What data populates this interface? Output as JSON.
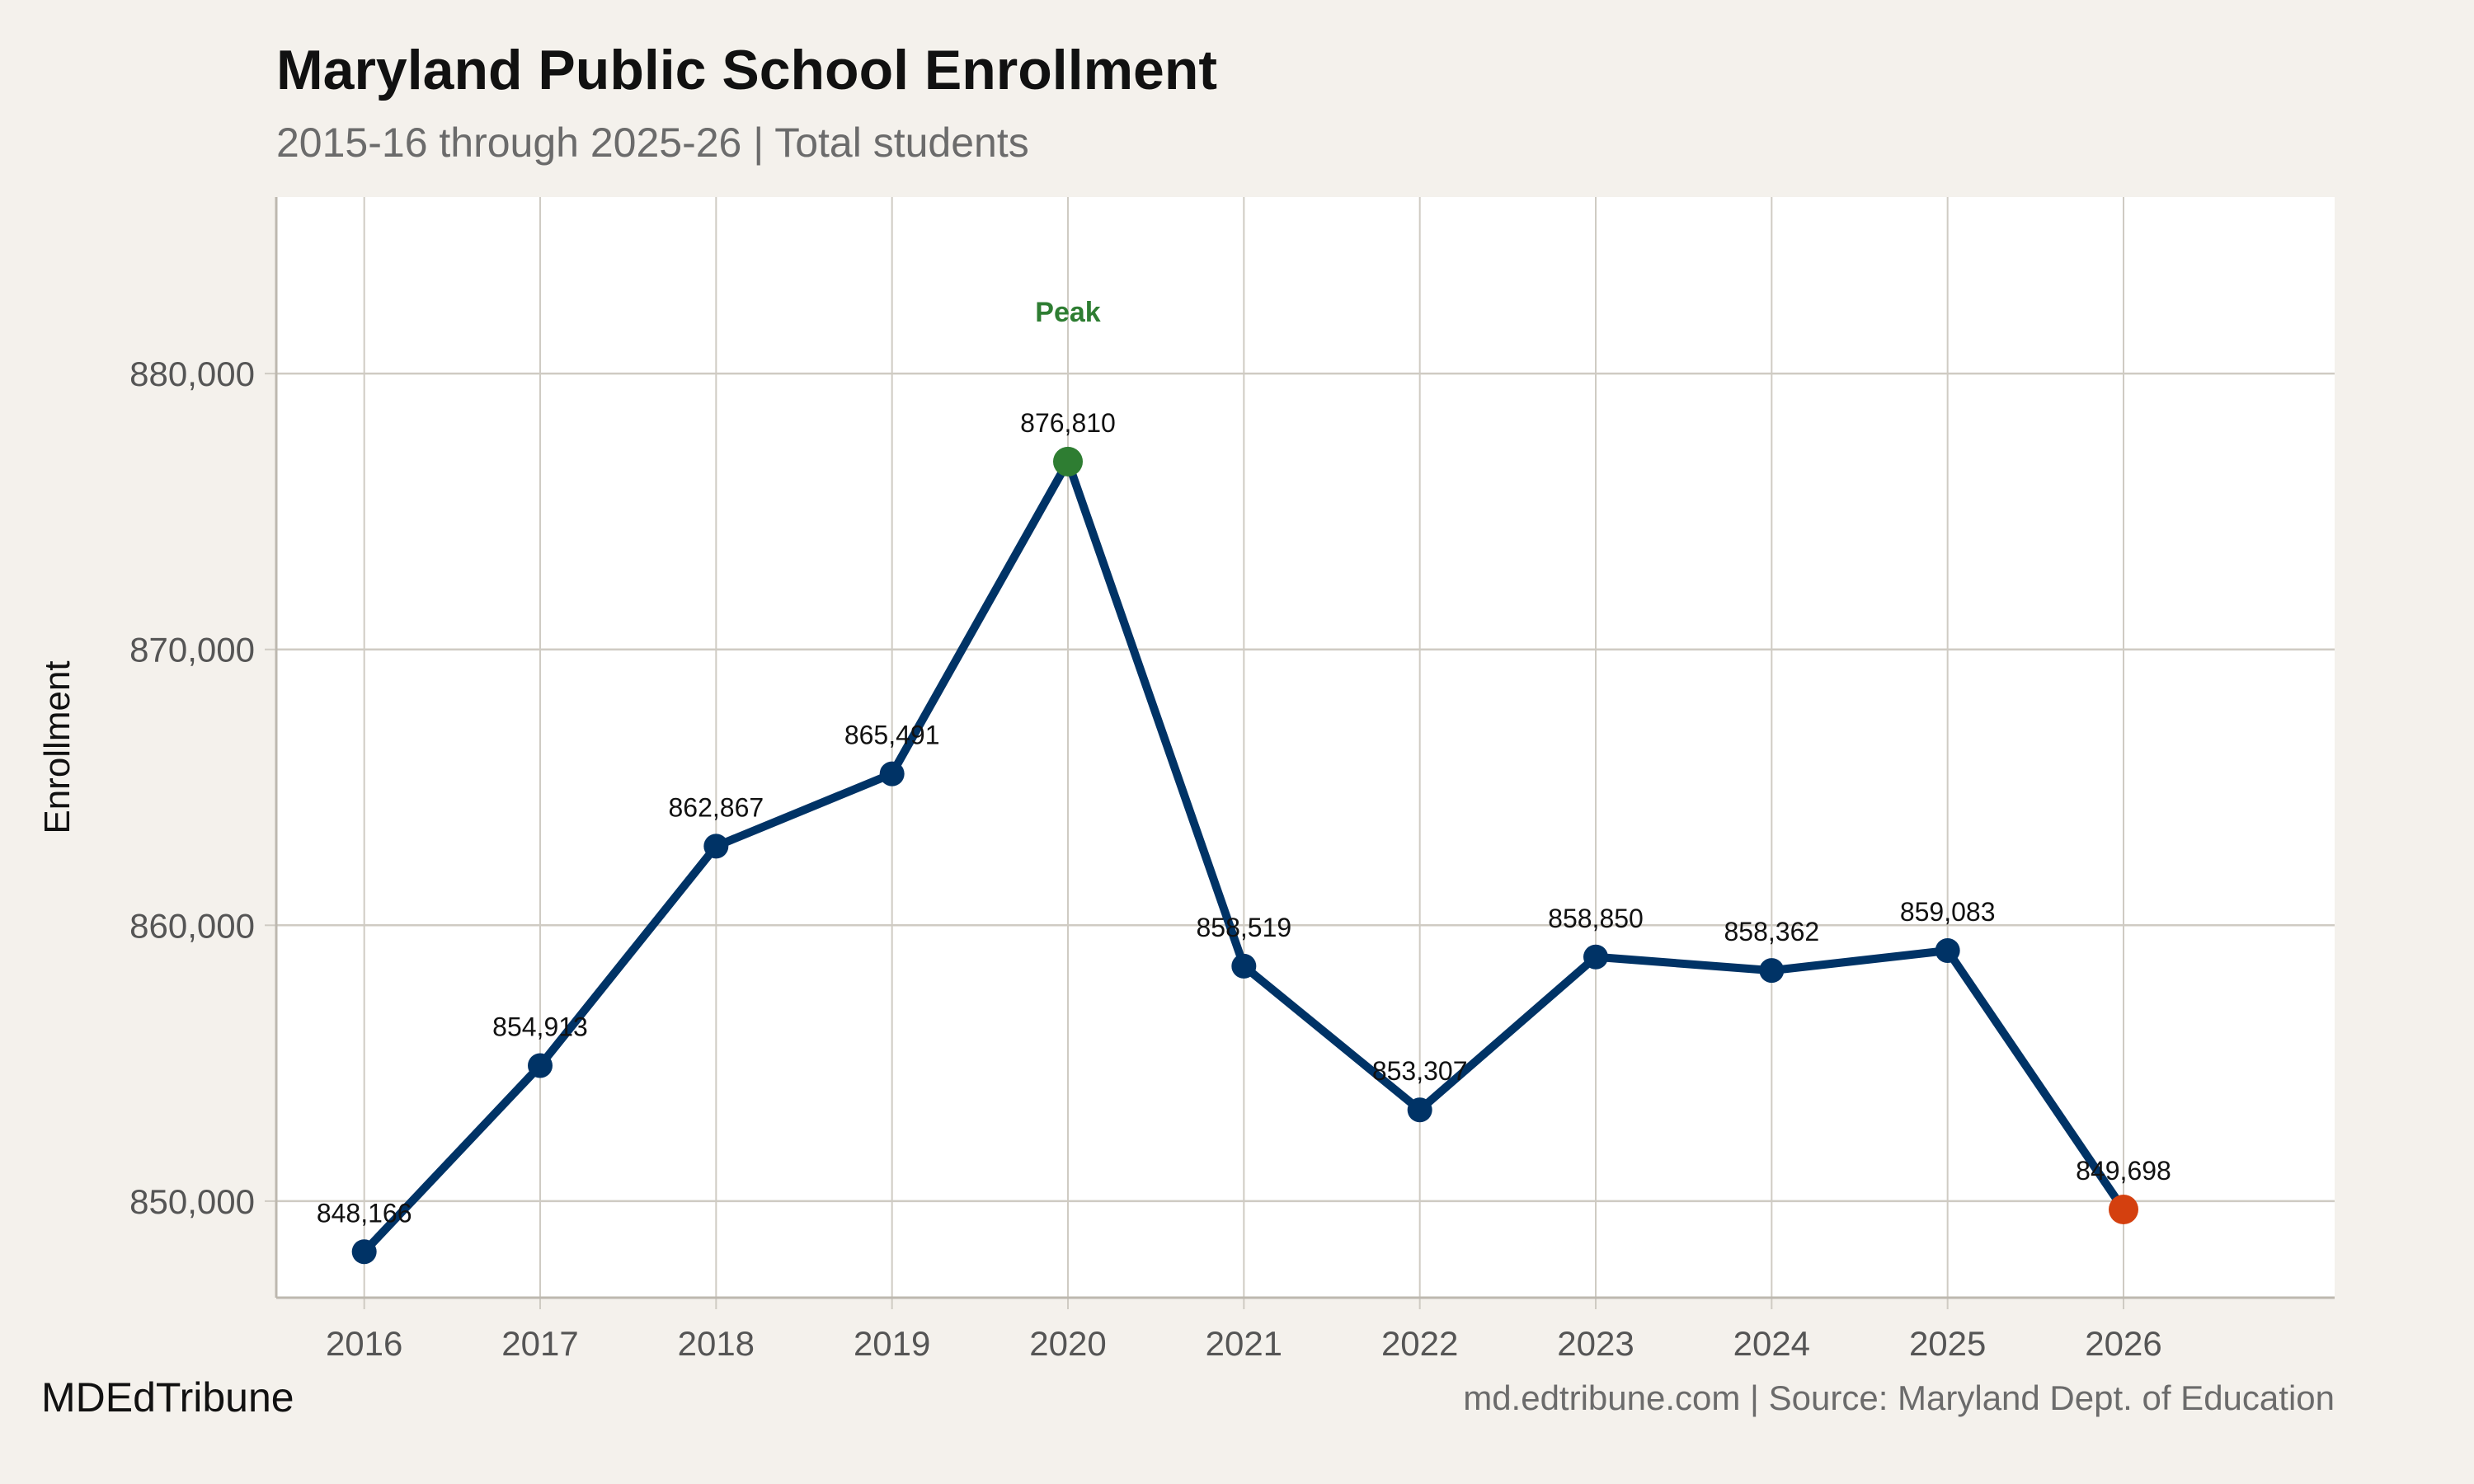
{
  "chart_data": {
    "type": "line",
    "title": "Maryland Public School Enrollment",
    "subtitle": "2015-16 through 2025-26 | Total students",
    "xlabel": "",
    "ylabel": "Enrollment",
    "x": [
      2016,
      2017,
      2018,
      2019,
      2020,
      2021,
      2022,
      2023,
      2024,
      2025,
      2026
    ],
    "values": [
      848166,
      854913,
      862867,
      865491,
      876810,
      858519,
      853307,
      858850,
      858362,
      859083,
      849698
    ],
    "data_labels": [
      "848,166",
      "854,913",
      "862,867",
      "865,491",
      "876,810",
      "858,519",
      "853,307",
      "858,850",
      "858,362",
      "859,083",
      "849,698"
    ],
    "x_ticks": [
      "2016",
      "2017",
      "2018",
      "2019",
      "2020",
      "2021",
      "2022",
      "2023",
      "2024",
      "2025",
      "2026"
    ],
    "y_ticks": [
      850000,
      860000,
      870000,
      880000
    ],
    "y_tick_labels": [
      "850,000",
      "860,000",
      "870,000",
      "880,000"
    ],
    "xlim": [
      2015.5,
      2027.2
    ],
    "ylim": [
      846500,
      886400
    ],
    "grid": true,
    "annotations": [
      {
        "text": "Peak",
        "x": 2020,
        "color": "#2e7d32"
      }
    ],
    "colors": {
      "line": "#003366",
      "peak": "#2e7d32",
      "latest": "#d4400f",
      "grid": "#cfcbc3",
      "panel": "#ffffff"
    }
  },
  "footer": {
    "brand": "MDEdTribune",
    "credit": "md.edtribune.com | Source: Maryland Dept. of Education"
  }
}
